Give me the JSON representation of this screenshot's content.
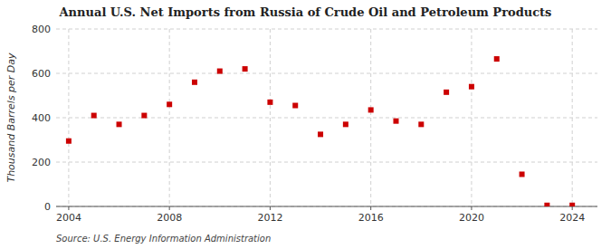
{
  "chart_data": {
    "type": "scatter",
    "title": "Annual U.S. Net Imports from Russia of Crude Oil and Petroleum Products",
    "ylabel": "Thousand Barrels per Day",
    "annotations": [
      "Source: U.S. Energy Information Administration"
    ],
    "x": [
      2004,
      2005,
      2006,
      2007,
      2008,
      2009,
      2010,
      2011,
      2012,
      2013,
      2014,
      2015,
      2016,
      2017,
      2018,
      2019,
      2020,
      2021,
      2022,
      2023,
      2024
    ],
    "values": [
      295,
      410,
      370,
      410,
      460,
      560,
      610,
      620,
      470,
      455,
      325,
      370,
      435,
      385,
      370,
      515,
      540,
      665,
      145,
      5,
      5
    ],
    "color": "#cc0000",
    "marker": "square",
    "xlim": [
      2003.5,
      2025
    ],
    "xticks": [
      2004,
      2008,
      2012,
      2016,
      2020,
      2024
    ],
    "ylim": [
      0,
      800
    ],
    "yticks": [
      0,
      200,
      400,
      600,
      800
    ],
    "grid": true
  }
}
